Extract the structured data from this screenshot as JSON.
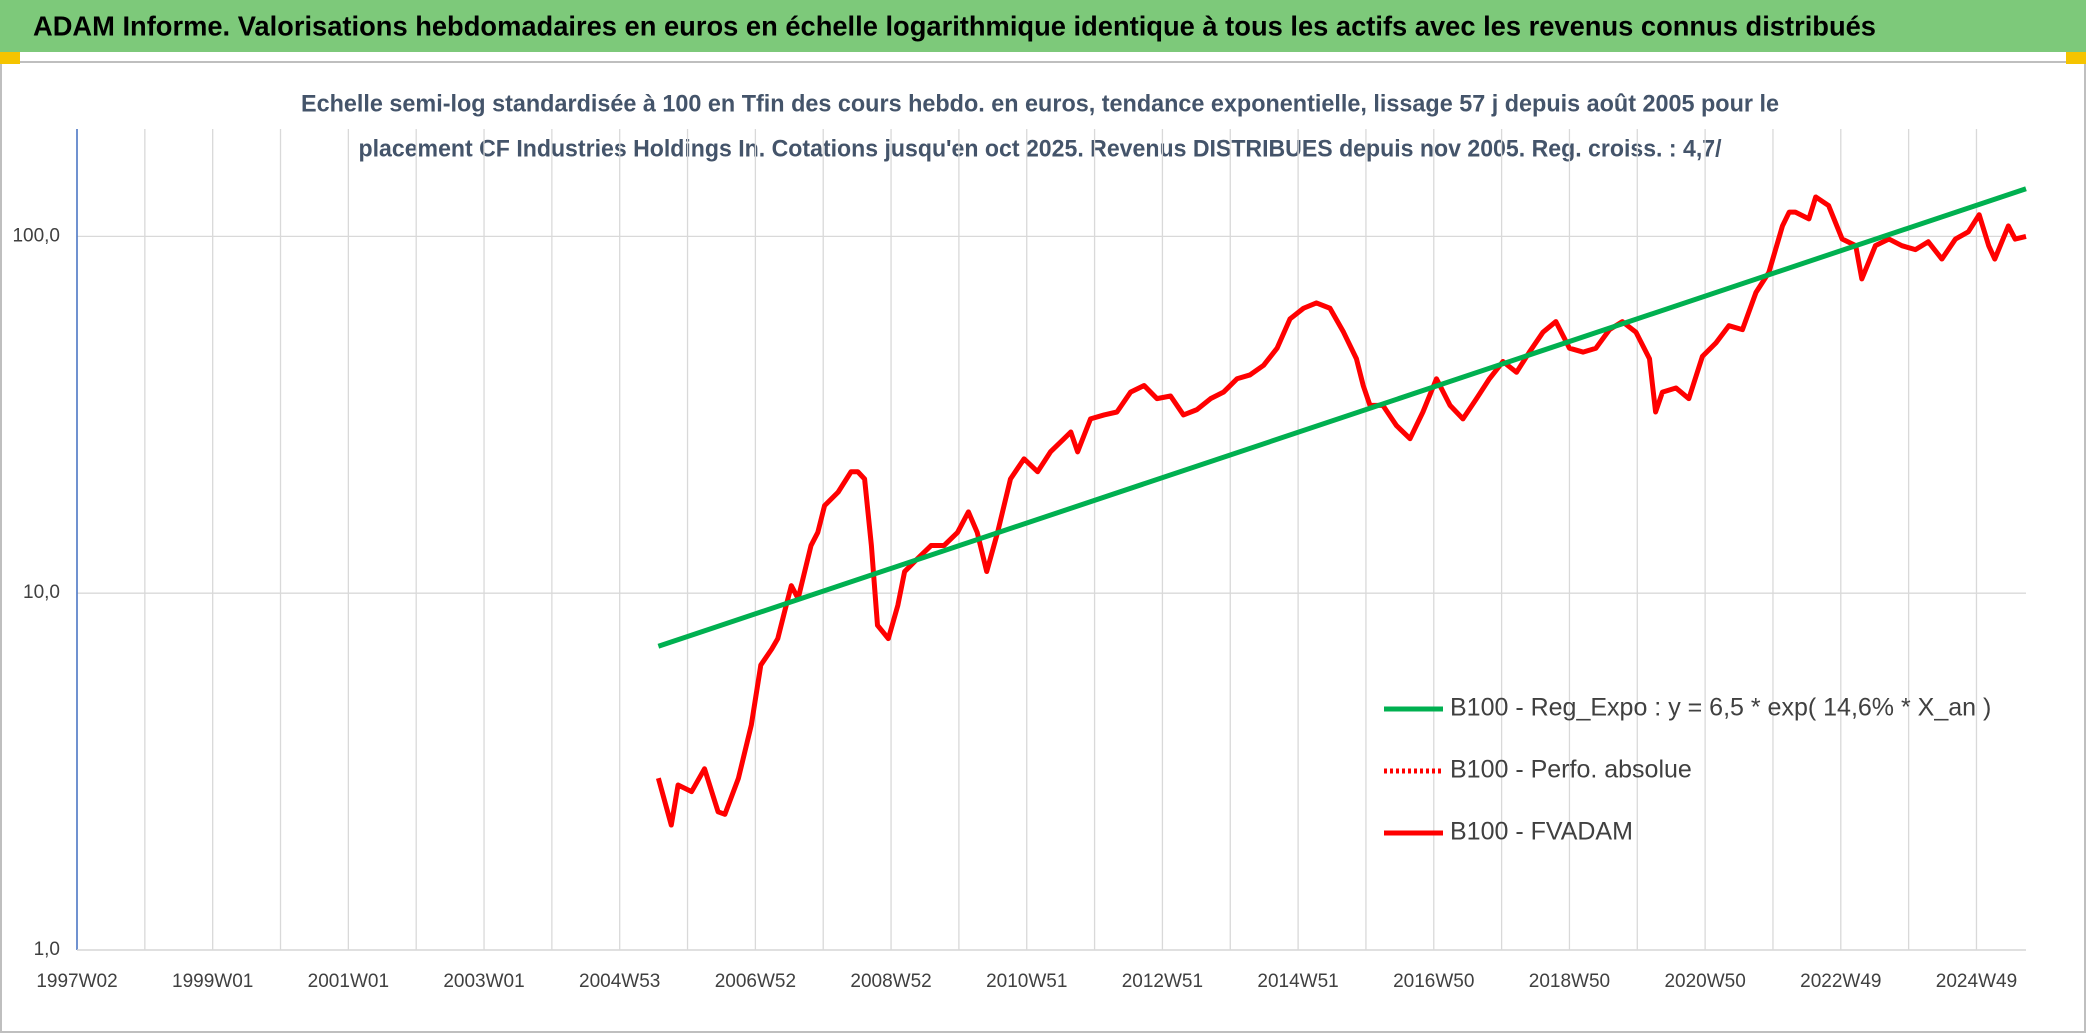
{
  "header": {
    "title": "ADAM Informe. Valorisations hebdomadaires en euros en échelle logarithmique identique à tous les actifs avec les revenus connus distribués"
  },
  "chart_data": {
    "type": "line",
    "title": [
      "Echelle semi-log standardisée à 100 en Tfin des cours hebdo. en euros, tendance exponentielle, lissage 57 j depuis août 2005 pour le",
      "placement CF Industries Holdings In. Cotations jusqu'en oct 2025. Revenus DISTRIBUES depuis nov 2005. Reg. croiss. : 4,7/"
    ],
    "log_scale": true,
    "grid": true,
    "legend": "right",
    "xlim": [
      1997,
      2025.73
    ],
    "xticks": [
      {
        "value": 1997,
        "label": "1997W02"
      },
      {
        "value": 1999,
        "label": "1999W01"
      },
      {
        "value": 2001,
        "label": "2001W01"
      },
      {
        "value": 2003,
        "label": "2003W01"
      },
      {
        "value": 2005,
        "label": "2004W53"
      },
      {
        "value": 2007,
        "label": "2006W52"
      },
      {
        "value": 2009,
        "label": "2008W52"
      },
      {
        "value": 2011,
        "label": "2010W51"
      },
      {
        "value": 2013,
        "label": "2012W51"
      },
      {
        "value": 2015,
        "label": "2014W51"
      },
      {
        "value": 2017,
        "label": "2016W50"
      },
      {
        "value": 2019,
        "label": "2018W50"
      },
      {
        "value": 2021,
        "label": "2020W50"
      },
      {
        "value": 2023,
        "label": "2022W49"
      },
      {
        "value": 2025,
        "label": "2024W49"
      }
    ],
    "xgrid": [
      1998,
      2000,
      2002,
      2004,
      2006,
      2008,
      2010,
      2012,
      2014,
      2016,
      2018,
      2020,
      2022,
      2024
    ],
    "ylim": [
      1,
      200
    ],
    "yticks": [
      {
        "value": 1,
        "label": "1,0"
      },
      {
        "value": 10,
        "label": "10,0"
      },
      {
        "value": 100,
        "label": "100,0"
      }
    ],
    "series": [
      {
        "name": "B100 - Reg_Expo : y = 6,5 * exp( 14,6% *  X_an )",
        "color": "#00b050",
        "style": "solid",
        "x": [
          2005.57,
          2025.73
        ],
        "values": [
          7.1,
          136
        ]
      },
      {
        "name": "B100 - Perfo. absolue",
        "color": "#ff0000",
        "style": "dotted",
        "x": [],
        "values": []
      },
      {
        "name": "B100 - FVADAM",
        "color": "#ff0000",
        "style": "solid",
        "x": [
          2005.57,
          2005.76,
          2005.86,
          2006.06,
          2006.25,
          2006.45,
          2006.55,
          2006.75,
          2006.94,
          2007.08,
          2007.24,
          2007.33,
          2007.43,
          2007.53,
          2007.63,
          2007.82,
          2007.92,
          2008.02,
          2008.22,
          2008.41,
          2008.51,
          2008.61,
          2008.71,
          2008.8,
          2008.96,
          2009.1,
          2009.2,
          2009.39,
          2009.59,
          2009.78,
          2009.98,
          2010.14,
          2010.27,
          2010.41,
          2010.57,
          2010.76,
          2010.96,
          2011.16,
          2011.35,
          2011.55,
          2011.65,
          2011.75,
          2011.94,
          2012.14,
          2012.33,
          2012.53,
          2012.73,
          2012.92,
          2013.12,
          2013.31,
          2013.51,
          2013.71,
          2013.9,
          2014.1,
          2014.29,
          2014.49,
          2014.69,
          2014.88,
          2015.08,
          2015.27,
          2015.47,
          2015.67,
          2015.86,
          2015.96,
          2016.06,
          2016.25,
          2016.45,
          2016.65,
          2016.84,
          2017.04,
          2017.24,
          2017.43,
          2017.63,
          2017.82,
          2018.02,
          2018.22,
          2018.41,
          2018.61,
          2018.8,
          2019.0,
          2019.2,
          2019.39,
          2019.59,
          2019.78,
          2019.98,
          2020.18,
          2020.27,
          2020.37,
          2020.57,
          2020.76,
          2020.96,
          2021.16,
          2021.35,
          2021.55,
          2021.75,
          2021.94,
          2022.14,
          2022.24,
          2022.33,
          2022.53,
          2022.63,
          2022.82,
          2023.02,
          2023.22,
          2023.31,
          2023.51,
          2023.71,
          2023.9,
          2024.1,
          2024.29,
          2024.49,
          2024.69,
          2024.88,
          2025.04,
          2025.18,
          2025.27,
          2025.47,
          2025.57,
          2025.73
        ],
        "values": [
          3.03,
          2.24,
          2.9,
          2.78,
          3.22,
          2.44,
          2.4,
          3.03,
          4.27,
          6.29,
          6.97,
          7.46,
          8.87,
          10.5,
          9.66,
          13.6,
          14.8,
          17.6,
          19.2,
          21.9,
          21.9,
          20.9,
          13.6,
          8.13,
          7.46,
          9.25,
          11.5,
          12.5,
          13.6,
          13.6,
          14.8,
          16.9,
          14.8,
          11.5,
          14.8,
          20.9,
          23.8,
          21.9,
          24.9,
          27.1,
          28.3,
          24.9,
          30.8,
          31.6,
          32.2,
          36.6,
          38.2,
          35.1,
          35.7,
          31.6,
          32.7,
          35.1,
          36.6,
          39.9,
          40.9,
          43.5,
          48.6,
          58.7,
          62.9,
          65.1,
          62.9,
          53.9,
          45.4,
          38.2,
          33.6,
          33.6,
          29.5,
          27.1,
          32.2,
          39.9,
          33.6,
          30.8,
          35.1,
          39.9,
          44.6,
          41.6,
          47.4,
          53.9,
          57.7,
          48.6,
          47.4,
          48.6,
          54.8,
          57.7,
          53.9,
          45.4,
          32.2,
          36.6,
          37.6,
          35.1,
          46.1,
          50.3,
          56.2,
          54.8,
          69.7,
          79.3,
          107,
          117,
          117,
          112,
          129,
          122,
          98.3,
          94.2,
          76.0,
          94.2,
          98.3,
          94.2,
          91.8,
          96.6,
          86.4,
          98.3,
          103,
          115,
          94.2,
          86.4,
          107,
          98.3,
          100
        ]
      }
    ]
  }
}
